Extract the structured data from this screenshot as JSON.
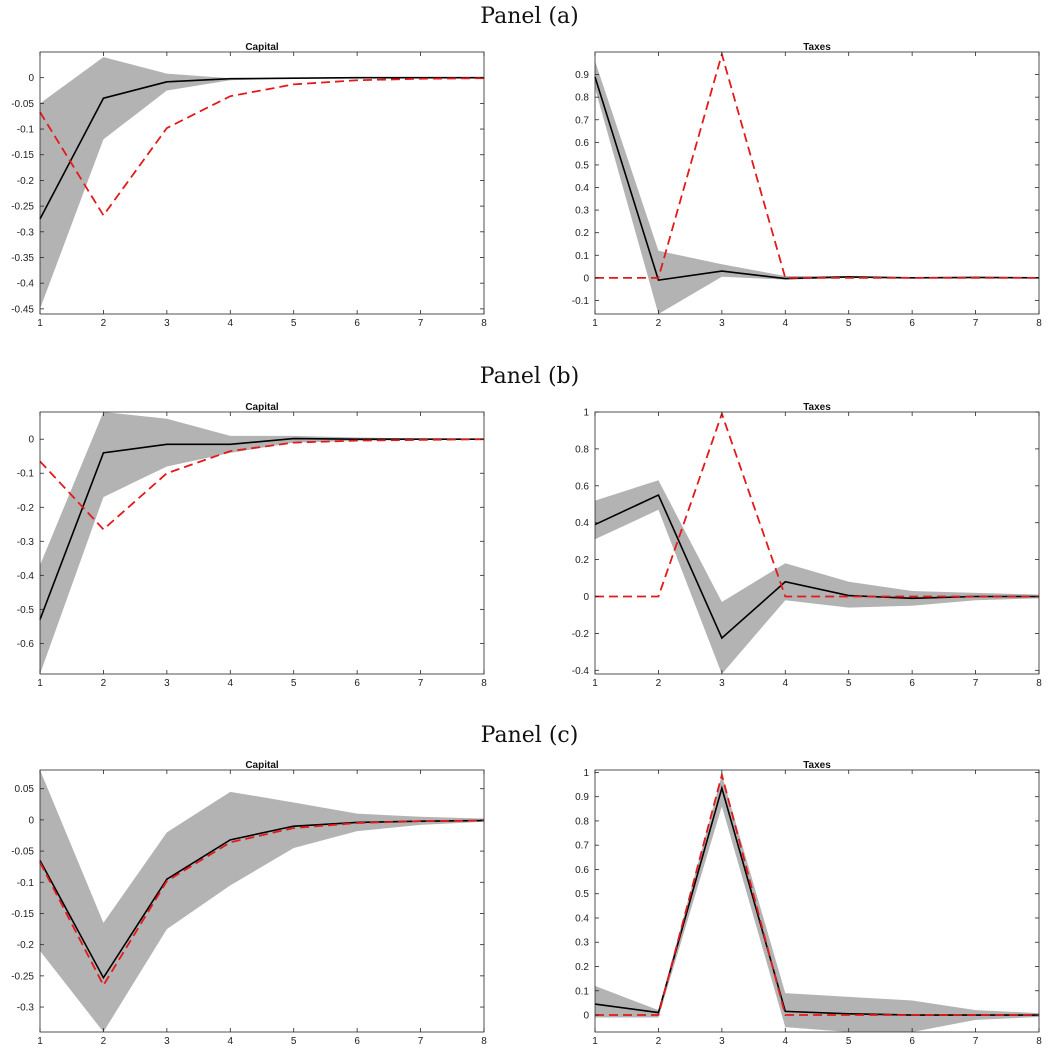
{
  "panels": [
    {
      "label": "Panel (a)"
    },
    {
      "label": "Panel (b)"
    },
    {
      "label": "Panel (c)"
    }
  ],
  "colors": {
    "band": "#b3b3b3",
    "estimate": "#000000",
    "true": "#e31a1c",
    "axis": "#262626"
  },
  "chart_data": [
    {
      "type": "line",
      "title": "Capital",
      "x": [
        1,
        2,
        3,
        4,
        5,
        6,
        7,
        8
      ],
      "ylim": [
        -0.46,
        0.05
      ],
      "yticks": [
        0,
        -0.05,
        -0.1,
        -0.15,
        -0.2,
        -0.25,
        -0.3,
        -0.35,
        -0.4,
        -0.45
      ],
      "ytick_labels": [
        "0",
        "-0.05",
        "-0.1",
        "-0.15",
        "-0.2",
        "-0.25",
        "-0.3",
        "-0.35",
        "-0.4",
        "-0.45"
      ],
      "xticks": [
        1,
        2,
        3,
        4,
        5,
        6,
        7,
        8
      ],
      "xtick_labels": [
        "1",
        "2",
        "3",
        "4",
        "5",
        "6",
        "7",
        "8"
      ],
      "band_upper": [
        -0.05,
        0.04,
        0.008,
        -0.001,
        0,
        0,
        0,
        0
      ],
      "band_lower": [
        -0.45,
        -0.12,
        -0.025,
        -0.005,
        -0.001,
        0,
        0,
        0
      ],
      "series": [
        {
          "values": [
            -0.275,
            -0.04,
            -0.008,
            -0.002,
            -0.001,
            0,
            0,
            0
          ],
          "style": "solid"
        },
        {
          "values": [
            -0.067,
            -0.268,
            -0.098,
            -0.036,
            -0.013,
            -0.005,
            -0.002,
            -0.001
          ],
          "style": "dashed"
        }
      ],
      "grid": false,
      "legend": "none"
    },
    {
      "type": "line",
      "title": "Taxes",
      "x": [
        1,
        2,
        3,
        4,
        5,
        6,
        7,
        8
      ],
      "ylim": [
        -0.16,
        1.0
      ],
      "yticks": [
        0.9,
        0.8,
        0.7,
        0.6,
        0.5,
        0.4,
        0.3,
        0.2,
        0.1,
        0,
        -0.1
      ],
      "ytick_labels": [
        "0.9",
        "0.8",
        "0.7",
        "0.6",
        "0.5",
        "0.4",
        "0.3",
        "0.2",
        "0.1",
        "0",
        "-0.1"
      ],
      "xticks": [
        1,
        2,
        3,
        4,
        5,
        6,
        7,
        8
      ],
      "xtick_labels": [
        "1",
        "2",
        "3",
        "4",
        "5",
        "6",
        "7",
        "8"
      ],
      "band_upper": [
        0.96,
        0.12,
        0.06,
        0.008,
        0.008,
        0.003,
        0.004,
        0.002
      ],
      "band_lower": [
        0.84,
        -0.16,
        0.005,
        -0.008,
        0,
        -0.003,
        -0.002,
        -0.001
      ],
      "series": [
        {
          "values": [
            0.89,
            -0.01,
            0.03,
            -0.003,
            0.004,
            0,
            0.002,
            0
          ],
          "style": "solid"
        },
        {
          "values": [
            0,
            0,
            0.99,
            0,
            0,
            0,
            0,
            0
          ],
          "style": "dashed"
        }
      ],
      "grid": false,
      "legend": "none"
    },
    {
      "type": "line",
      "title": "Capital",
      "x": [
        1,
        2,
        3,
        4,
        5,
        6,
        7,
        8
      ],
      "ylim": [
        -0.69,
        0.08
      ],
      "yticks": [
        0,
        -0.1,
        -0.2,
        -0.3,
        -0.4,
        -0.5,
        -0.6
      ],
      "ytick_labels": [
        "0",
        "-0.1",
        "-0.2",
        "-0.3",
        "-0.4",
        "-0.5",
        "-0.6"
      ],
      "xticks": [
        1,
        2,
        3,
        4,
        5,
        6,
        7,
        8
      ],
      "xtick_labels": [
        "1",
        "2",
        "3",
        "4",
        "5",
        "6",
        "7",
        "8"
      ],
      "band_upper": [
        -0.37,
        0.08,
        0.06,
        0.01,
        0.01,
        0.005,
        0.002,
        0.001
      ],
      "band_lower": [
        -0.69,
        -0.17,
        -0.08,
        -0.04,
        -0.01,
        -0.005,
        -0.002,
        -0.001
      ],
      "series": [
        {
          "values": [
            -0.53,
            -0.04,
            -0.015,
            -0.015,
            0.002,
            0,
            0,
            0
          ],
          "style": "solid"
        },
        {
          "values": [
            -0.065,
            -0.265,
            -0.1,
            -0.035,
            -0.01,
            -0.004,
            -0.002,
            0
          ],
          "style": "dashed"
        }
      ],
      "grid": false,
      "legend": "none"
    },
    {
      "type": "line",
      "title": "Taxes",
      "x": [
        1,
        2,
        3,
        4,
        5,
        6,
        7,
        8
      ],
      "ylim": [
        -0.42,
        1.0
      ],
      "yticks": [
        1,
        0.8,
        0.6,
        0.4,
        0.2,
        0,
        -0.2,
        -0.4
      ],
      "ytick_labels": [
        "1",
        "0.8",
        "0.6",
        "0.4",
        "0.2",
        "0",
        "-0.2",
        "-0.4"
      ],
      "xticks": [
        1,
        2,
        3,
        4,
        5,
        6,
        7,
        8
      ],
      "xtick_labels": [
        "1",
        "2",
        "3",
        "4",
        "5",
        "6",
        "7",
        "8"
      ],
      "band_upper": [
        0.52,
        0.63,
        -0.03,
        0.18,
        0.08,
        0.03,
        0.02,
        0.01
      ],
      "band_lower": [
        0.31,
        0.47,
        -0.42,
        -0.02,
        -0.06,
        -0.05,
        -0.02,
        -0.01
      ],
      "series": [
        {
          "values": [
            0.39,
            0.55,
            -0.225,
            0.08,
            0.005,
            -0.01,
            0,
            0
          ],
          "style": "solid"
        },
        {
          "values": [
            0,
            0,
            0.99,
            0,
            0,
            0,
            0,
            0
          ],
          "style": "dashed"
        }
      ],
      "grid": false,
      "legend": "none"
    },
    {
      "type": "line",
      "title": "Capital",
      "x": [
        1,
        2,
        3,
        4,
        5,
        6,
        7,
        8
      ],
      "ylim": [
        -0.34,
        0.08
      ],
      "yticks": [
        0.05,
        0,
        -0.05,
        -0.1,
        -0.15,
        -0.2,
        -0.25,
        -0.3
      ],
      "ytick_labels": [
        "0.05",
        "0",
        "-0.05",
        "-0.1",
        "-0.15",
        "-0.2",
        "-0.25",
        "-0.3"
      ],
      "xticks": [
        1,
        2,
        3,
        4,
        5,
        6,
        7,
        8
      ],
      "xtick_labels": [
        "1",
        "2",
        "3",
        "4",
        "5",
        "6",
        "7",
        "8"
      ],
      "band_upper": [
        0.08,
        -0.165,
        -0.02,
        0.045,
        0.028,
        0.01,
        0.005,
        0.002
      ],
      "band_lower": [
        -0.21,
        -0.34,
        -0.175,
        -0.105,
        -0.045,
        -0.018,
        -0.008,
        -0.003
      ],
      "series": [
        {
          "values": [
            -0.065,
            -0.253,
            -0.095,
            -0.032,
            -0.01,
            -0.004,
            -0.002,
            -0.001
          ],
          "style": "solid"
        },
        {
          "values": [
            -0.068,
            -0.265,
            -0.098,
            -0.036,
            -0.013,
            -0.005,
            -0.002,
            -0.001
          ],
          "style": "dashed"
        }
      ],
      "grid": false,
      "legend": "none"
    },
    {
      "type": "line",
      "title": "Taxes",
      "x": [
        1,
        2,
        3,
        4,
        5,
        6,
        7,
        8
      ],
      "ylim": [
        -0.07,
        1.01
      ],
      "yticks": [
        1,
        0.9,
        0.8,
        0.7,
        0.6,
        0.5,
        0.4,
        0.3,
        0.2,
        0.1,
        0
      ],
      "ytick_labels": [
        "1",
        "0.9",
        "0.8",
        "0.7",
        "0.6",
        "0.5",
        "0.4",
        "0.3",
        "0.2",
        "0.1",
        "0"
      ],
      "xticks": [
        1,
        2,
        3,
        4,
        5,
        6,
        7,
        8
      ],
      "xtick_labels": [
        "1",
        "2",
        "3",
        "4",
        "5",
        "6",
        "7",
        "8"
      ],
      "band_upper": [
        0.12,
        0.02,
        0.99,
        0.09,
        0.075,
        0.06,
        0.02,
        0.008
      ],
      "band_lower": [
        -0.01,
        -0.01,
        0.86,
        -0.05,
        -0.07,
        -0.07,
        -0.02,
        -0.008
      ],
      "series": [
        {
          "values": [
            0.045,
            0.01,
            0.935,
            0.015,
            0.005,
            0,
            0,
            0
          ],
          "style": "solid"
        },
        {
          "values": [
            0,
            0,
            0.99,
            0,
            0,
            0,
            0,
            0
          ],
          "style": "dashed"
        }
      ],
      "grid": false,
      "legend": "none"
    }
  ]
}
